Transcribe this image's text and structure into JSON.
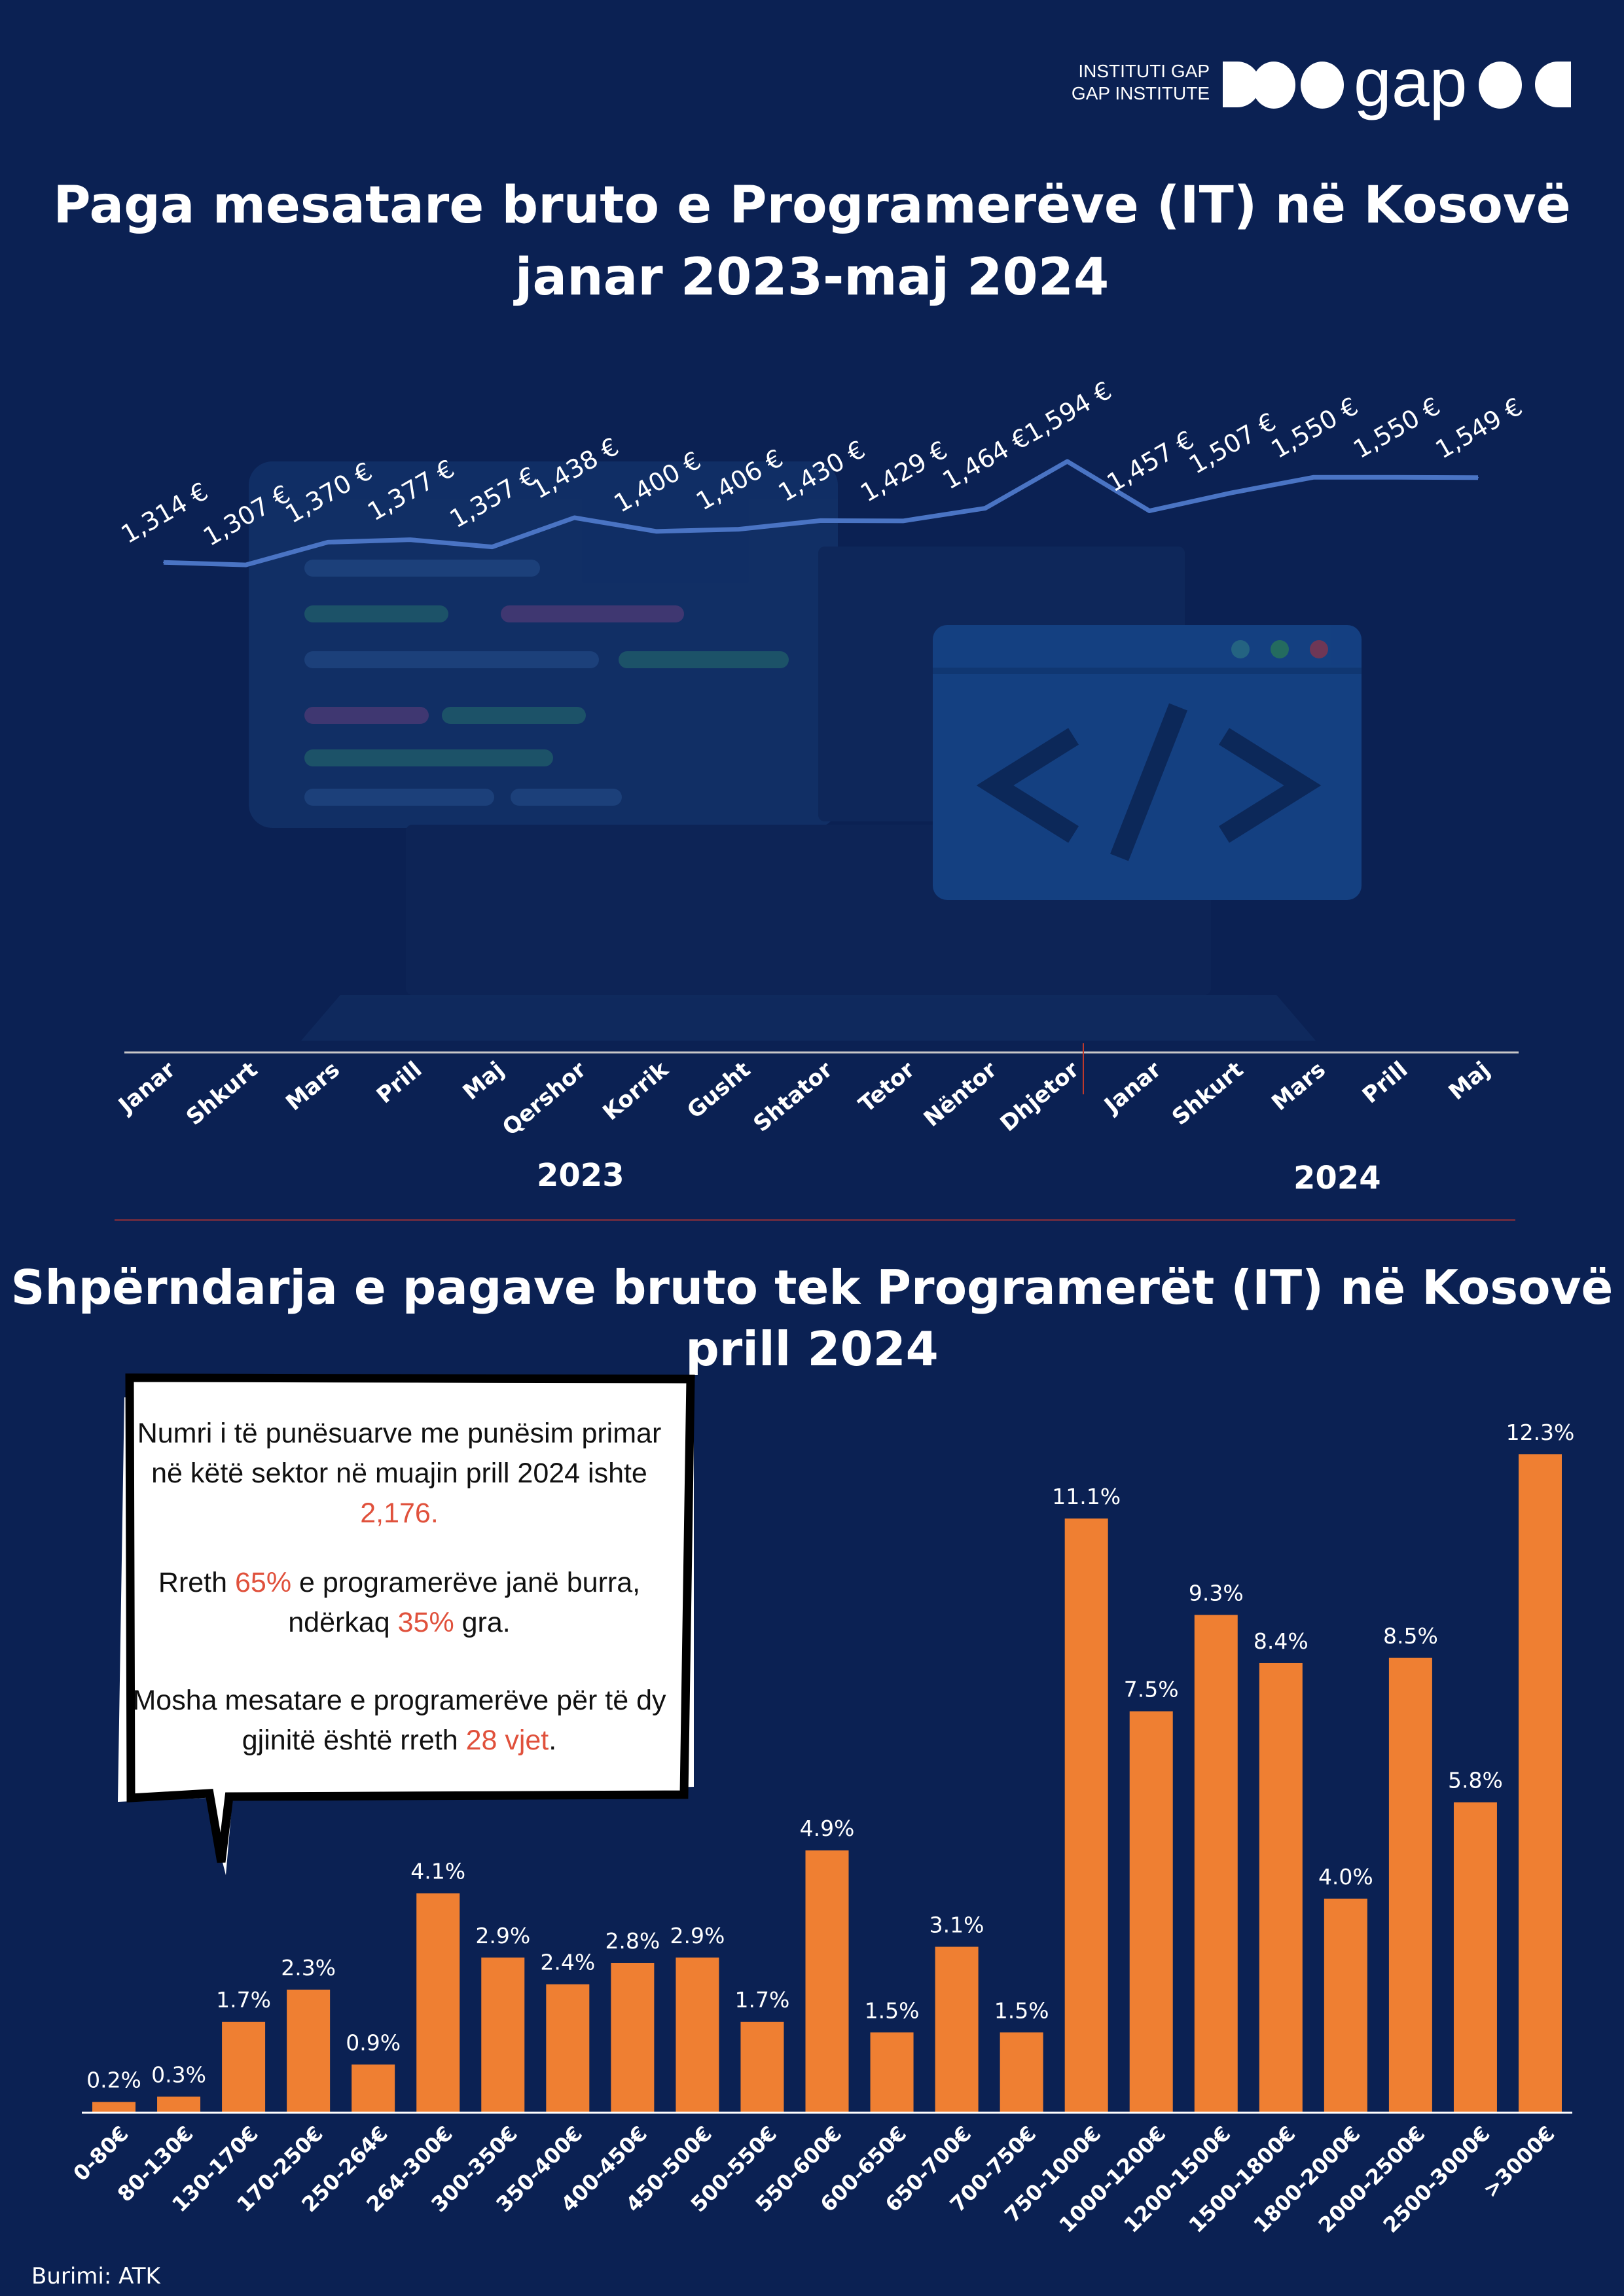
{
  "brand": {
    "line1": "INSTITUTI GAP",
    "line2": "GAP INSTITUTE",
    "logo_text": "gap"
  },
  "colors": {
    "background": "#0b2153",
    "line": "#4a74c4",
    "bar": "#ef7f32",
    "highlight": "#e0513c",
    "divider": "#8a2f3a"
  },
  "source": "Burimi: ATK",
  "callout": {
    "p1_before": "Numri i të punësuarve me punësim primar në këtë sektor në muajin prill 2024 ishte ",
    "p1_value": "2,176.",
    "p2_before": "Rreth ",
    "p2_male": "65%",
    "p2_mid": " e programerëve janë burra, ndërkaq ",
    "p2_female": "35%",
    "p2_after": " gra.",
    "p3_before": "Mosha mesatare e programerëve për të dy gjinitë është rreth ",
    "p3_value": "28 vjet",
    "p3_after": "."
  },
  "chart_data": [
    {
      "type": "line",
      "title": "Paga mesatare bruto e Programerëve (IT) në Kosovë",
      "subtitle": "janar 2023-maj 2024",
      "categories": [
        "Janar",
        "Shkurt",
        "Mars",
        "Prill",
        "Maj",
        "Qershor",
        "Korrik",
        "Gusht",
        "Shtator",
        "Tetor",
        "Nëntor",
        "Dhjetor",
        "Janar",
        "Shkurt",
        "Mars",
        "Prill",
        "Maj"
      ],
      "values": [
        1314,
        1307,
        1370,
        1377,
        1357,
        1438,
        1400,
        1406,
        1430,
        1429,
        1464,
        1594,
        1457,
        1507,
        1550,
        1550,
        1549
      ],
      "data_labels": [
        "1,314 €",
        "1,307 €",
        "1,370 €",
        "1,377 €",
        "1,357 €",
        "1,438 €",
        "1,400 €",
        "1,406 €",
        "1,430 €",
        "1,429 €",
        "1,464 €",
        "1,594 €",
        "1,457 €",
        "1,507 €",
        "1,550 €",
        "1,550 €",
        "1,549 €"
      ],
      "year_groups": [
        {
          "label": "2023",
          "from": 0,
          "to": 11
        },
        {
          "label": "2024",
          "from": 12,
          "to": 16
        }
      ],
      "grid": false
    },
    {
      "type": "bar",
      "title": "Shpërndarja e pagave bruto tek Programerët (IT) në Kosovë",
      "subtitle": "prill 2024",
      "categories": [
        "0-80€",
        "80-130€",
        "130-170€",
        "170-250€",
        "250-264€",
        "264-300€",
        "300-350€",
        "350-400€",
        "400-450€",
        "450-500€",
        "500-550€",
        "550-600€",
        "600-650€",
        "650-700€",
        "700-750€",
        "750-1000€",
        "1000-1200€",
        "1200-1500€",
        "1500-1800€",
        "1800-2000€",
        "2000-2500€",
        "2500-3000€",
        ">3000€"
      ],
      "values": [
        0.2,
        0.3,
        1.7,
        2.3,
        0.9,
        4.1,
        2.9,
        2.4,
        2.8,
        2.9,
        1.7,
        4.9,
        1.5,
        3.1,
        1.5,
        11.1,
        7.5,
        9.3,
        8.4,
        4.0,
        8.5,
        5.8,
        12.3
      ],
      "data_labels": [
        "0.2%",
        "0.3%",
        "1.7%",
        "2.3%",
        "0.9%",
        "4.1%",
        "2.9%",
        "2.4%",
        "2.8%",
        "2.9%",
        "1.7%",
        "4.9%",
        "1.5%",
        "3.1%",
        "1.5%",
        "11.1%",
        "7.5%",
        "9.3%",
        "8.4%",
        "4.0%",
        "8.5%",
        "5.8%",
        "12.3%"
      ],
      "ylim": [
        0,
        12.3
      ],
      "grid": false
    }
  ]
}
